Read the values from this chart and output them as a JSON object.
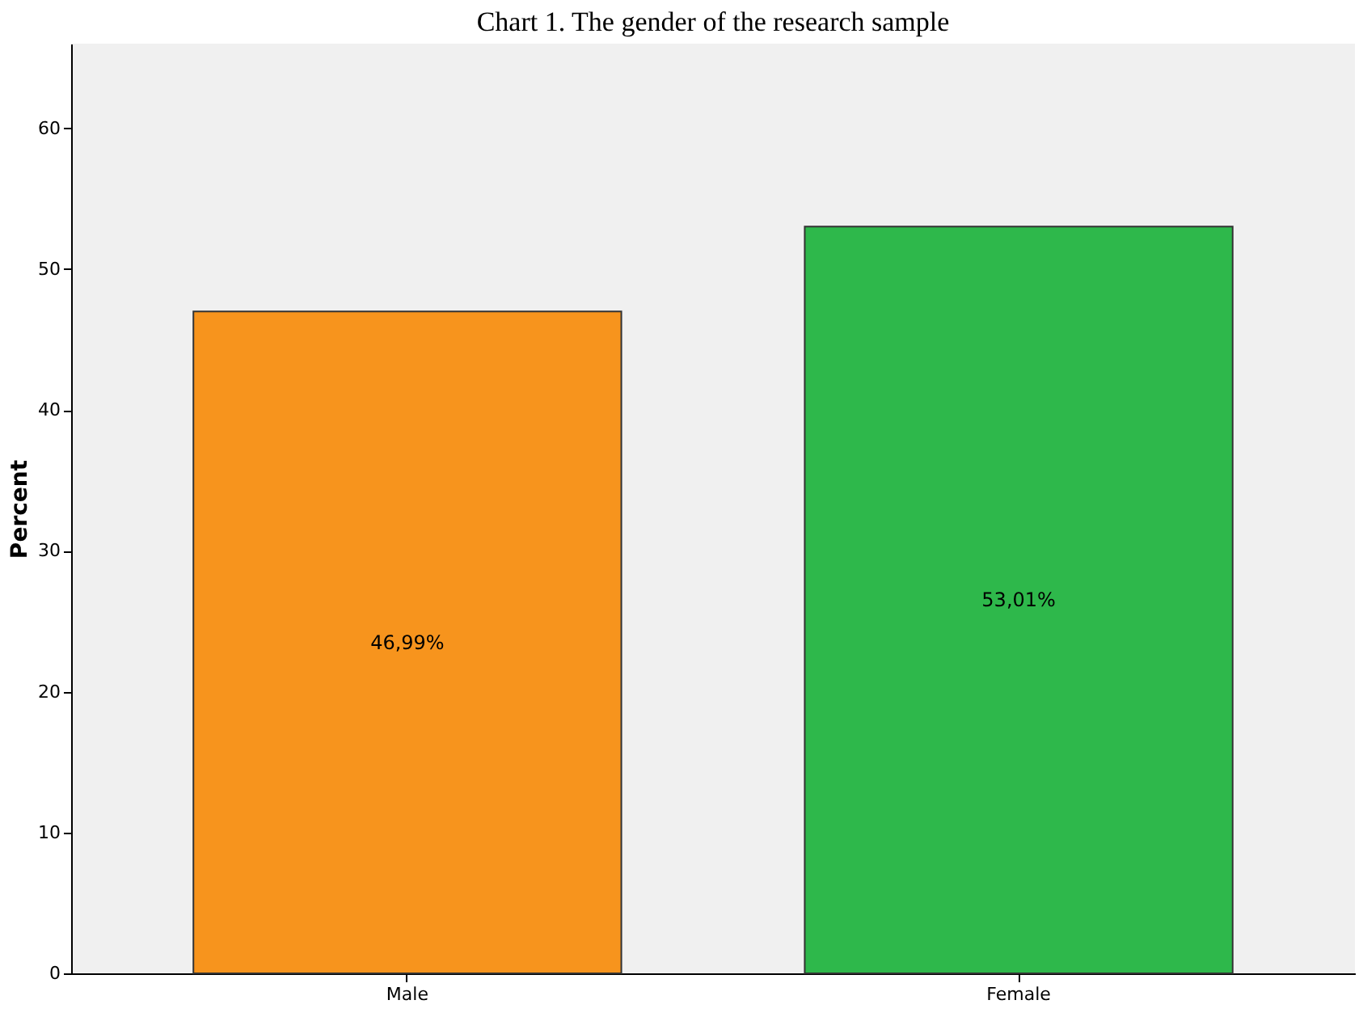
{
  "chart_data": {
    "type": "bar",
    "title": "Chart 1. The gender of the research sample",
    "ylabel": "Percent",
    "categories": [
      "Male",
      "Female"
    ],
    "values": [
      46.99,
      53.01
    ],
    "colors": [
      "#f7941d",
      "#2eb84b"
    ],
    "value_labels": [
      "46,99%",
      "53,01%"
    ],
    "ylim": [
      0,
      66
    ],
    "yticks": [
      0,
      10,
      20,
      30,
      40,
      50,
      60
    ],
    "grid": false
  }
}
